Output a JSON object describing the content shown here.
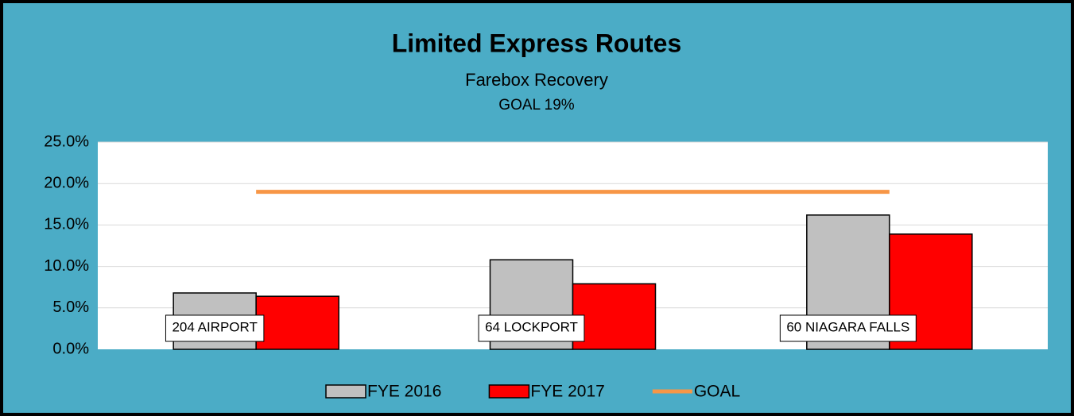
{
  "chart_data": {
    "type": "bar",
    "title": "Limited Express Routes",
    "subtitle": "Farebox Recovery",
    "annotation": "GOAL 19%",
    "categories": [
      "204 AIRPORT",
      "64 LOCKPORT",
      "60 NIAGARA FALLS"
    ],
    "series": [
      {
        "name": "FYE 2016",
        "color": "#c0c0c0",
        "values": [
          6.8,
          10.8,
          16.2
        ]
      },
      {
        "name": "FYE 2017",
        "color": "#ff0000",
        "values": [
          6.4,
          7.9,
          13.9
        ]
      },
      {
        "name": "GOAL",
        "color": "#f79646",
        "type": "line",
        "values": [
          19,
          19,
          19
        ]
      }
    ],
    "ylim": [
      0,
      25
    ],
    "yticks": [
      {
        "value": 0,
        "label": "0.0%"
      },
      {
        "value": 5,
        "label": "5.0%"
      },
      {
        "value": 10,
        "label": "10.0%"
      },
      {
        "value": 15,
        "label": "15.0%"
      },
      {
        "value": 20,
        "label": "20.0%"
      },
      {
        "value": 25,
        "label": "25.0%"
      }
    ],
    "grid": true,
    "legend": "bottom"
  }
}
